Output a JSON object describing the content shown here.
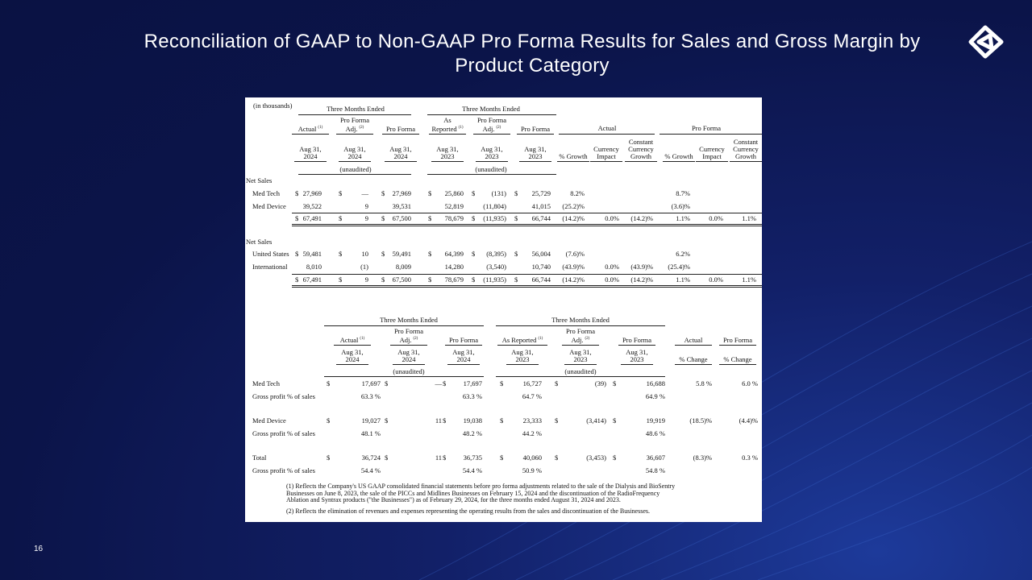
{
  "title": "Reconciliation of GAAP to Non-GAAP Pro Forma Results for Sales and Gross Margin by Product Category",
  "page_number": "16",
  "table1": {
    "unit_note": "(in thousands)",
    "groups": [
      "Three Months Ended",
      "Three Months Ended"
    ],
    "columns": [
      {
        "name": "Actual",
        "note": "(1)",
        "date": "Aug 31, 2024"
      },
      {
        "name": "Pro Forma Adj.",
        "note": "(2)",
        "date": "Aug 31, 2024"
      },
      {
        "name": "Pro Forma",
        "note": null,
        "date": "Aug 31, 2024"
      },
      {
        "name": "As Reported",
        "note": "(1)",
        "date": "Aug 31, 2023"
      },
      {
        "name": "Pro Forma Adj.",
        "note": "(2)",
        "date": "Aug 31, 2023"
      },
      {
        "name": "Pro Forma",
        "note": null,
        "date": "Aug 31, 2023"
      }
    ],
    "audit": [
      "(unaudited)",
      "(unaudited)"
    ],
    "growth_groups": [
      "Actual",
      "Pro Forma"
    ],
    "growth_columns": [
      "% Growth",
      "Currency Impact",
      "Constant Currency Growth",
      "% Growth",
      "Currency Impact",
      "Constant Currency Growth"
    ],
    "rows": [
      {
        "section": "Net Sales"
      },
      {
        "label": "Med Tech",
        "currency": "$",
        "cells": [
          "27,969",
          "—",
          "27,969",
          "25,860",
          "(131)",
          "25,729",
          "8.2%",
          null,
          null,
          "8.7%",
          null,
          null
        ]
      },
      {
        "label": "Med Device",
        "currency": null,
        "cells": [
          "39,522",
          "9",
          "39,531",
          "52,819",
          "(11,804)",
          "41,015",
          "(25.2)%",
          null,
          null,
          "(3.6)%",
          null,
          null
        ]
      },
      {
        "label": null,
        "currency": "$",
        "cells": [
          "67,491",
          "9",
          "67,500",
          "78,679",
          "(11,935)",
          "66,744",
          "(14.2)%",
          "0.0%",
          "(14.2)%",
          "1.1%",
          "0.0%",
          "1.1%"
        ]
      },
      {
        "section": "Net Sales"
      },
      {
        "label": "United States",
        "currency": "$",
        "cells": [
          "59,481",
          "10",
          "59,491",
          "64,399",
          "(8,395)",
          "56,004",
          "(7.6)%",
          null,
          null,
          "6.2%",
          null,
          null
        ]
      },
      {
        "label": "International",
        "currency": null,
        "cells": [
          "8,010",
          "(1)",
          "8,009",
          "14,280",
          "(3,540)",
          "10,740",
          "(43.9)%",
          "0.0%",
          "(43.9)%",
          "(25.4)%",
          null,
          null
        ]
      },
      {
        "label": null,
        "currency": "$",
        "cells": [
          "67,491",
          "9",
          "67,500",
          "78,679",
          "(11,935)",
          "66,744",
          "(14.2)%",
          "0.0%",
          "(14.2)%",
          "1.1%",
          "0.0%",
          "1.1%"
        ]
      }
    ]
  },
  "table2": {
    "groups": [
      "Three Months Ended",
      "Three Months Ended"
    ],
    "columns": [
      {
        "name": "Actual",
        "note": "(1)",
        "date": "Aug 31, 2024"
      },
      {
        "name": "Pro Forma Adj.",
        "note": "(2)",
        "date": "Aug 31, 2024"
      },
      {
        "name": "Pro Forma",
        "note": null,
        "date": "Aug 31, 2024"
      },
      {
        "name": "As Reported",
        "note": "(1)",
        "date": "Aug 31, 2023"
      },
      {
        "name": "Pro Forma Adj.",
        "note": "(2)",
        "date": "Aug 31, 2023"
      },
      {
        "name": "Pro Forma",
        "note": null,
        "date": "Aug 31, 2023"
      },
      {
        "name": "Actual",
        "note": null,
        "date": "% Change"
      },
      {
        "name": "Pro Forma",
        "note": null,
        "date": "% Change"
      }
    ],
    "audit": [
      "(unaudited)",
      "(unaudited)"
    ],
    "rows": [
      {
        "label": "Med Tech",
        "currency": "$",
        "cells": [
          "17,697",
          "—",
          "17,697",
          "16,727",
          "(39)",
          "16,688",
          "5.8 %",
          "6.0 %"
        ]
      },
      {
        "label": "Gross profit % of sales",
        "currency": null,
        "cells": [
          "63.3 %",
          null,
          "63.3 %",
          "64.7 %",
          null,
          "64.9 %",
          null,
          null
        ]
      },
      {
        "label": "Med Device",
        "currency": "$",
        "cells": [
          "19,027",
          "11",
          "19,038",
          "23,333",
          "(3,414)",
          "19,919",
          "(18.5)%",
          "(4.4)%"
        ]
      },
      {
        "label": "Gross profit % of sales",
        "currency": null,
        "cells": [
          "48.1 %",
          null,
          "48.2 %",
          "44.2 %",
          null,
          "48.6 %",
          null,
          null
        ]
      },
      {
        "label": "Total",
        "currency": "$",
        "cells": [
          "36,724",
          "11",
          "36,735",
          "40,060",
          "(3,453)",
          "36,607",
          "(8.3)%",
          "0.3 %"
        ]
      },
      {
        "label": "Gross profit % of sales",
        "currency": null,
        "cells": [
          "54.4 %",
          null,
          "54.4 %",
          "50.9 %",
          null,
          "54.8 %",
          null,
          null
        ]
      }
    ]
  },
  "footnotes": [
    "(1) Reflects the Company's US GAAP consolidated financial statements before pro forma adjustments related to the sale of the Dialysis and BioSentry Businesses on June 8, 2023, the sale of the PICCs and Midlines Businesses on February 15, 2024 and the discontinuation of the RadioFrequency Ablation and Syntrax products (\"the Businesses\") as of February 29, 2024, for the three months ended August 31, 2024 and 2023.",
    "(2) Reflects the elimination of revenues and expenses representing the operating results from the sales and discontinuation of the Businesses."
  ]
}
